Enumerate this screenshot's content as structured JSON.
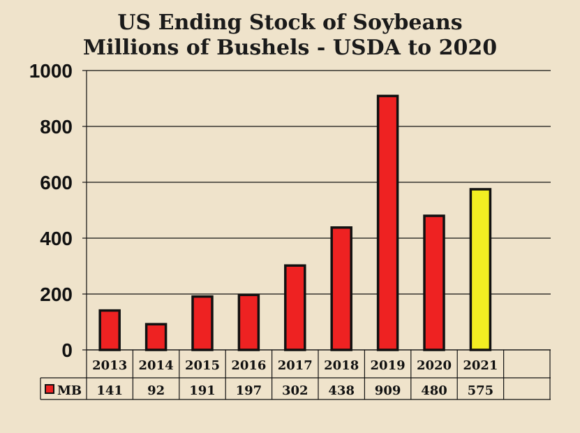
{
  "chart_data": {
    "type": "bar",
    "title": "US Ending Stock of Soybeans",
    "subtitle": "Millions of Bushels - USDA to 2020",
    "categories": [
      "2013",
      "2014",
      "2015",
      "2016",
      "2017",
      "2018",
      "2019",
      "2020",
      "2021"
    ],
    "series": [
      {
        "name": "MB",
        "values": [
          141,
          92,
          191,
          197,
          302,
          438,
          909,
          480,
          575
        ]
      }
    ],
    "ylim": [
      0,
      1000
    ],
    "yticks": [
      0,
      200,
      400,
      600,
      800,
      1000
    ],
    "xlabel": "",
    "ylabel": "",
    "grid": true,
    "legend": "data-table",
    "data_table": true,
    "colors": {
      "bar": "#ee2222",
      "highlight": "#f2ee22",
      "highlight_index": 8,
      "outline": "#111111",
      "background": "#efe3cb"
    }
  }
}
